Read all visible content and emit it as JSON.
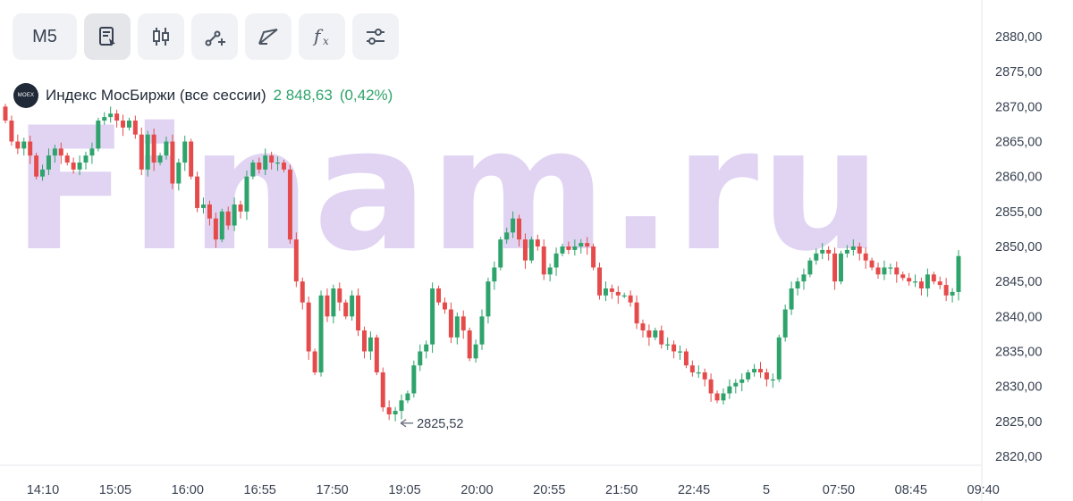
{
  "toolbar": {
    "timeframe_label": "M5",
    "buttons": [
      {
        "icon": "notes-icon",
        "active": true
      },
      {
        "icon": "candles-icon",
        "active": false
      },
      {
        "icon": "add-trend-icon",
        "active": false
      },
      {
        "icon": "drawing-icon",
        "active": false
      },
      {
        "icon": "function-icon",
        "active": false
      },
      {
        "icon": "settings-sliders-icon",
        "active": false
      }
    ]
  },
  "instrument": {
    "name": "Индекс МосБиржи (все сессии)",
    "value": "2 848,63",
    "change": "(0,42%)",
    "logo_text": "MOEX",
    "up_color": "#2ea36b",
    "down_color": "#e54b4b"
  },
  "watermark": "Finam.ru",
  "chart_data": {
    "type": "candlestick",
    "ylim": [
      2819,
      2882
    ],
    "y_ticks": [
      "2880,00",
      "2875,00",
      "2870,00",
      "2865,00",
      "2860,00",
      "2855,00",
      "2850,00",
      "2845,00",
      "2840,00",
      "2835,00",
      "2830,00",
      "2825,00",
      "2820,00"
    ],
    "x_ticks": [
      "14:10",
      "15:05",
      "16:00",
      "16:55",
      "17:50",
      "19:05",
      "20:00",
      "20:55",
      "21:50",
      "22:45",
      "5",
      "07:50",
      "08:45",
      "09:40"
    ],
    "min_marker": "2825,52",
    "closes": [
      2868,
      2865,
      2864,
      2865,
      2863,
      2860,
      2861,
      2863,
      2864,
      2863,
      2862,
      2861,
      2862,
      2863,
      2864,
      2868,
      2868.5,
      2869,
      2868,
      2867,
      2868,
      2866,
      2861,
      2866,
      2862,
      2863,
      2865,
      2859,
      2862,
      2865,
      2860,
      2855.5,
      2856,
      2854,
      2851,
      2855,
      2853,
      2856,
      2855,
      2860,
      2862,
      2861,
      2863,
      2862,
      2862,
      2861,
      2851,
      2845,
      2842,
      2835,
      2832,
      2843,
      2840,
      2844,
      2842,
      2840,
      2843,
      2838,
      2835,
      2837,
      2832,
      2827,
      2826,
      2826.5,
      2828,
      2829,
      2833,
      2835,
      2836,
      2844,
      2842,
      2841,
      2837,
      2840,
      2838,
      2834,
      2836,
      2840,
      2845,
      2847,
      2851,
      2852,
      2854,
      2851,
      2848,
      2851,
      2850,
      2846,
      2847,
      2849,
      2850,
      2849.5,
      2850,
      2850.5,
      2850,
      2847,
      2843,
      2844,
      2843.5,
      2843,
      2843,
      2842,
      2839,
      2838,
      2837,
      2838,
      2836,
      2836,
      2835,
      2835,
      2833,
      2832,
      2832,
      2831,
      2829,
      2828,
      2829,
      2830,
      2830.5,
      2831,
      2832,
      2832.5,
      2832,
      2831,
      2831,
      2837,
      2841,
      2844,
      2845,
      2846,
      2848,
      2849,
      2849.5,
      2849,
      2845,
      2849,
      2849.5,
      2850,
      2849,
      2848,
      2847,
      2846,
      2847,
      2847,
      2846,
      2845.5,
      2845,
      2845,
      2844,
      2846,
      2845,
      2844.5,
      2843,
      2843.5,
      2848.63
    ]
  }
}
